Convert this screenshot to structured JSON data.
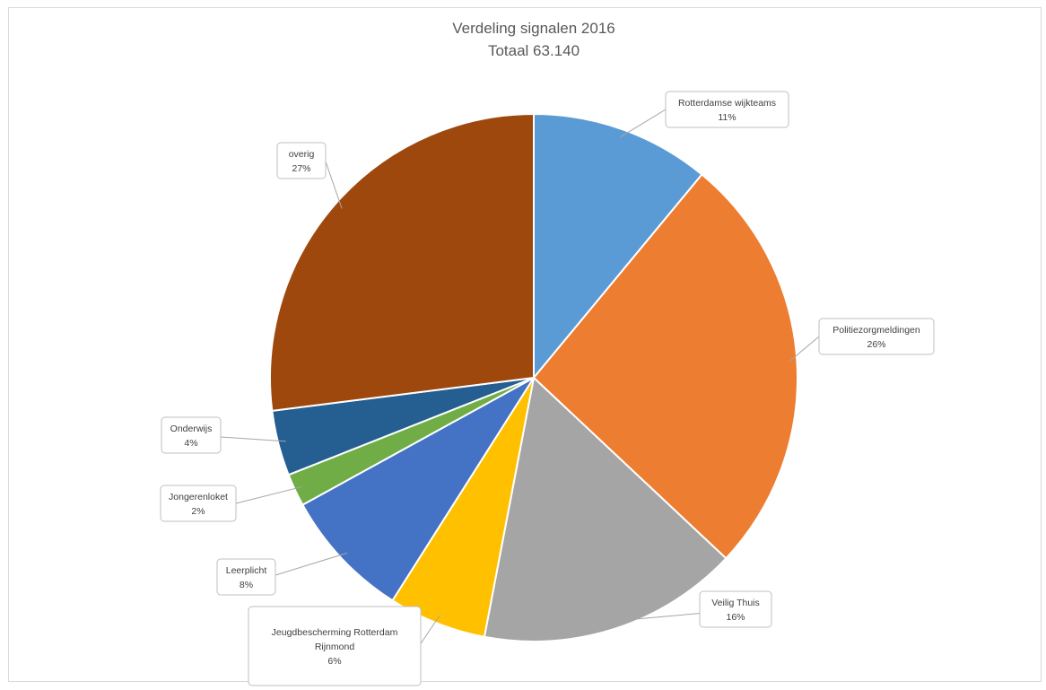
{
  "chart_data": {
    "type": "pie",
    "title": "Verdeling signalen 2016",
    "subtitle": "Totaal 63.140",
    "slices": [
      {
        "name": "Rotterdamse wijkteams",
        "value": 11,
        "percent_label": "11%",
        "color": "#5B9BD5"
      },
      {
        "name": "Politiezorgmeldingen",
        "value": 26,
        "percent_label": "26%",
        "color": "#ED7D31"
      },
      {
        "name": "Veilig Thuis",
        "value": 16,
        "percent_label": "16%",
        "color": "#A5A5A5"
      },
      {
        "name": "Jeugdbescherming Rotterdam Rijnmond",
        "value": 6,
        "percent_label": "6%",
        "color": "#FFC000"
      },
      {
        "name": "Leerplicht",
        "value": 8,
        "percent_label": "8%",
        "color": "#4472C4"
      },
      {
        "name": "Jongerenloket",
        "value": 2,
        "percent_label": "2%",
        "color": "#70AD47"
      },
      {
        "name": "Onderwijs",
        "value": 4,
        "percent_label": "4%",
        "color": "#255E91"
      },
      {
        "name": "overig",
        "value": 27,
        "percent_label": "27%",
        "color": "#9E480E"
      }
    ]
  }
}
